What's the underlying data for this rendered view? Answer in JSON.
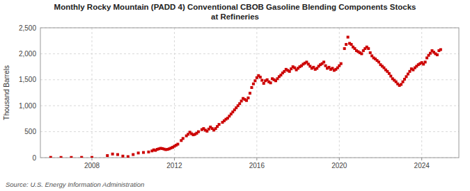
{
  "chart_data": {
    "type": "scatter",
    "title": "Monthly Rocky Mountain (PADD 4) Conventional CBOB Gasoline Blending Components Stocks\nat Refineries",
    "ylabel": "Thousand Barrels",
    "annotations": [
      "Source: U.S. Energy Information Administration"
    ],
    "color": "#cc0000",
    "marker": "square",
    "grid": true,
    "xlim": [
      2005.5,
      2025.8
    ],
    "xticks": [
      2008,
      2012,
      2016,
      2020,
      2024
    ],
    "ylim": [
      0,
      2500
    ],
    "yticks": [
      0,
      500,
      {
        "value": 1000,
        "label": "1,000"
      },
      {
        "value": 1500,
        "label": "1,500"
      },
      {
        "value": 2000,
        "label": "2,000"
      },
      {
        "value": 2500,
        "label": "2,500"
      }
    ],
    "x": [
      2006.0,
      2006.5,
      2007.0,
      2007.5,
      2008.0,
      2008.75,
      2009.0,
      2009.25,
      2009.5,
      2009.75,
      2010.0,
      2010.25,
      2010.5,
      2010.75,
      2010.917,
      2011.0,
      2011.083,
      2011.167,
      2011.25,
      2011.333,
      2011.417,
      2011.5,
      2011.583,
      2011.667,
      2011.75,
      2011.833,
      2011.917,
      2012.0,
      2012.083,
      2012.167,
      2012.333,
      2012.417,
      2012.583,
      2012.667,
      2012.75,
      2012.833,
      2012.917,
      2013.0,
      2013.083,
      2013.167,
      2013.333,
      2013.417,
      2013.5,
      2013.583,
      2013.667,
      2013.75,
      2013.833,
      2013.917,
      2014.0,
      2014.083,
      2014.167,
      2014.333,
      2014.417,
      2014.5,
      2014.583,
      2014.667,
      2014.75,
      2014.833,
      2014.917,
      2015.0,
      2015.083,
      2015.167,
      2015.25,
      2015.333,
      2015.417,
      2015.5,
      2015.583,
      2015.667,
      2015.75,
      2015.833,
      2015.917,
      2016.0,
      2016.083,
      2016.167,
      2016.25,
      2016.333,
      2016.417,
      2016.5,
      2016.583,
      2016.667,
      2016.75,
      2016.833,
      2016.917,
      2017.0,
      2017.083,
      2017.167,
      2017.25,
      2017.333,
      2017.417,
      2017.5,
      2017.583,
      2017.667,
      2017.75,
      2017.833,
      2017.917,
      2018.0,
      2018.083,
      2018.167,
      2018.25,
      2018.333,
      2018.417,
      2018.5,
      2018.583,
      2018.667,
      2018.75,
      2018.833,
      2018.917,
      2019.0,
      2019.083,
      2019.167,
      2019.25,
      2019.333,
      2019.417,
      2019.5,
      2019.583,
      2019.667,
      2019.75,
      2019.833,
      2019.917,
      2020.0,
      2020.083,
      2020.25,
      2020.333,
      2020.417,
      2020.5,
      2020.583,
      2020.667,
      2020.75,
      2020.833,
      2020.917,
      2021.0,
      2021.083,
      2021.167,
      2021.25,
      2021.333,
      2021.417,
      2021.5,
      2021.583,
      2021.667,
      2021.75,
      2021.833,
      2021.917,
      2022.0,
      2022.083,
      2022.167,
      2022.25,
      2022.333,
      2022.417,
      2022.5,
      2022.583,
      2022.667,
      2022.75,
      2022.833,
      2022.917,
      2023.0,
      2023.083,
      2023.167,
      2023.25,
      2023.333,
      2023.417,
      2023.5,
      2023.583,
      2023.667,
      2023.75,
      2023.833,
      2023.917,
      2024.0,
      2024.083,
      2024.167,
      2024.25,
      2024.333,
      2024.417,
      2024.5,
      2024.583,
      2024.667,
      2024.75,
      2024.833,
      2024.917
    ],
    "values": [
      5,
      4,
      4,
      5,
      5,
      40,
      70,
      60,
      30,
      20,
      60,
      90,
      100,
      110,
      130,
      150,
      140,
      160,
      170,
      180,
      175,
      165,
      155,
      160,
      170,
      185,
      200,
      220,
      240,
      260,
      330,
      370,
      420,
      450,
      490,
      460,
      440,
      450,
      470,
      500,
      540,
      560,
      530,
      510,
      550,
      590,
      560,
      530,
      560,
      600,
      640,
      680,
      710,
      740,
      760,
      800,
      840,
      880,
      920,
      960,
      1000,
      1040,
      1090,
      1140,
      1120,
      1100,
      1150,
      1240,
      1350,
      1420,
      1480,
      1540,
      1580,
      1550,
      1490,
      1430,
      1480,
      1500,
      1460,
      1440,
      1520,
      1500,
      1480,
      1520,
      1560,
      1590,
      1630,
      1660,
      1700,
      1680,
      1660,
      1710,
      1750,
      1730,
      1690,
      1720,
      1750,
      1770,
      1800,
      1820,
      1840,
      1800,
      1760,
      1720,
      1740,
      1700,
      1720,
      1760,
      1790,
      1810,
      1840,
      1770,
      1720,
      1740,
      1700,
      1720,
      1680,
      1700,
      1730,
      1770,
      1810,
      2100,
      2180,
      2320,
      2200,
      2180,
      2130,
      2100,
      2060,
      2040,
      2020,
      2000,
      2060,
      2100,
      2130,
      2100,
      2020,
      1960,
      1920,
      1900,
      1870,
      1840,
      1790,
      1760,
      1730,
      1690,
      1660,
      1620,
      1570,
      1520,
      1490,
      1460,
      1420,
      1390,
      1410,
      1460,
      1510,
      1560,
      1610,
      1660,
      1710,
      1690,
      1730,
      1760,
      1790,
      1810,
      1830,
      1800,
      1840,
      1920,
      1970,
      2010,
      2060,
      2030,
      2000,
      1980,
      2060,
      2080
    ]
  }
}
